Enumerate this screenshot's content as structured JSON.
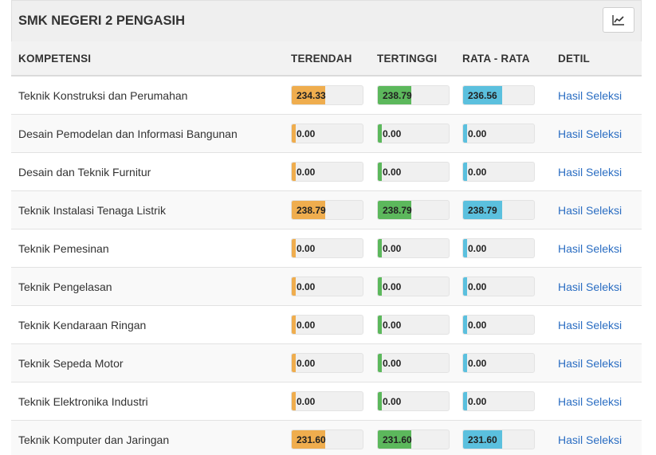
{
  "panel": {
    "title": "SMK NEGERI 2 PENGASIH",
    "chart_button_icon": "line-chart-icon"
  },
  "columns": [
    "KOMPETENSI",
    "TERENDAH",
    "TERTINGGI",
    "RATA - RATA",
    "DETIL"
  ],
  "colors": {
    "terendah": "#efad4e",
    "tertinggi": "#5cb85c",
    "rata": "#5bc0de",
    "link": "#2a6dc2"
  },
  "rows": [
    {
      "name": "Teknik Konstruksi dan Perumahan",
      "terendah": "234.33",
      "tertinggi": "238.79",
      "rata": "236.56",
      "link": "Hasil Seleksi",
      "fill": [
        0.47,
        0.47,
        0.55
      ]
    },
    {
      "name": "Desain Pemodelan dan Informasi Bangunan",
      "terendah": "0.00",
      "tertinggi": "0.00",
      "rata": "0.00",
      "link": "Hasil Seleksi",
      "fill": [
        0,
        0,
        0
      ]
    },
    {
      "name": "Desain dan Teknik Furnitur",
      "terendah": "0.00",
      "tertinggi": "0.00",
      "rata": "0.00",
      "link": "Hasil Seleksi",
      "fill": [
        0,
        0,
        0
      ]
    },
    {
      "name": "Teknik Instalasi Tenaga Listrik",
      "terendah": "238.79",
      "tertinggi": "238.79",
      "rata": "238.79",
      "link": "Hasil Seleksi",
      "fill": [
        0.47,
        0.47,
        0.55
      ]
    },
    {
      "name": "Teknik Pemesinan",
      "terendah": "0.00",
      "tertinggi": "0.00",
      "rata": "0.00",
      "link": "Hasil Seleksi",
      "fill": [
        0,
        0,
        0
      ]
    },
    {
      "name": "Teknik Pengelasan",
      "terendah": "0.00",
      "tertinggi": "0.00",
      "rata": "0.00",
      "link": "Hasil Seleksi",
      "fill": [
        0,
        0,
        0
      ]
    },
    {
      "name": "Teknik Kendaraan Ringan",
      "terendah": "0.00",
      "tertinggi": "0.00",
      "rata": "0.00",
      "link": "Hasil Seleksi",
      "fill": [
        0,
        0,
        0
      ]
    },
    {
      "name": "Teknik Sepeda Motor",
      "terendah": "0.00",
      "tertinggi": "0.00",
      "rata": "0.00",
      "link": "Hasil Seleksi",
      "fill": [
        0,
        0,
        0
      ]
    },
    {
      "name": "Teknik Elektronika Industri",
      "terendah": "0.00",
      "tertinggi": "0.00",
      "rata": "0.00",
      "link": "Hasil Seleksi",
      "fill": [
        0,
        0,
        0
      ]
    },
    {
      "name": "Teknik Komputer dan Jaringan",
      "terendah": "231.60",
      "tertinggi": "231.60",
      "rata": "231.60",
      "link": "Hasil Seleksi",
      "fill": [
        0.47,
        0.47,
        0.55
      ]
    }
  ]
}
